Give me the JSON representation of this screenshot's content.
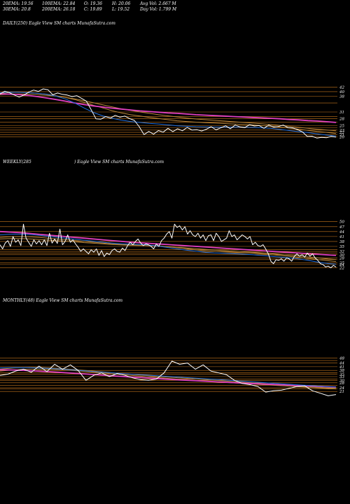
{
  "header": {
    "row1": [
      "20EMA: 19.56",
      "100EMA: 22.84",
      "O: 19.36",
      "H: 20.06",
      "Avg Vol: 2.667 M"
    ],
    "row2": [
      "30EMA: 20.8",
      "200EMA: 26.18",
      "C: 19.89",
      "L: 19.52",
      "Day Vol: 1.799 M"
    ]
  },
  "labels": {
    "daily": "DAILY(250) Eagle  View  SM charts MunafaSutra.com",
    "weekly_left": "WEEKLY(285",
    "weekly_right": ") Eagle  View  SM charts MunafaSutra.com",
    "monthly": "MONTHLY(48) Eagle  View  SM charts MunafaSutra.com"
  },
  "colors": {
    "price": "#ffffff",
    "ema_blue": "#1f6fe0",
    "ema_pink": "#e040c0",
    "ema_brown": "#b8863b",
    "hlines": "#c8781e",
    "background": "#000000"
  },
  "chart_data": [
    {
      "type": "line",
      "name": "daily",
      "ylim": [
        18,
        44
      ],
      "yticks": [
        42,
        40,
        38,
        31,
        28,
        25,
        23,
        22,
        21,
        20
      ],
      "hlines": [
        42,
        40,
        38,
        35,
        31,
        29,
        28,
        26.5,
        25,
        24,
        23,
        22,
        21,
        20
      ],
      "series": [
        {
          "role": "price",
          "values": [
            39,
            40.2,
            39.5,
            38.5,
            37.6,
            38.5,
            39.8,
            40.7,
            40.1,
            41.2,
            40.8,
            38.6,
            39.4,
            38.8,
            38.5,
            37.8,
            38.2,
            37,
            35.8,
            32,
            28,
            27.8,
            29,
            28.3,
            29.5,
            28.7,
            29.2,
            28.1,
            27.3,
            24.5,
            21,
            22.4,
            21.2,
            22.8,
            22.1,
            23.8,
            22.3,
            23.6,
            22.7,
            24.2,
            23,
            23.2,
            22.6,
            23.4,
            24.5,
            23.1,
            24,
            24.9,
            23.6,
            25.2,
            24.4,
            24.1,
            25.4,
            24.8,
            25,
            23.8,
            25.2,
            24.3,
            24.6,
            25.2,
            24.1,
            24,
            23.2,
            22.2,
            20.2,
            20.3,
            19.5,
            19.8,
            19.6,
            20.2,
            19.9
          ]
        },
        {
          "role": "ema_blue",
          "values": [
            39.5,
            39.8,
            39.7,
            39.5,
            39.3,
            38.8,
            38,
            36.8,
            35,
            32.8,
            30.8,
            29.3,
            28.2,
            27.4,
            26.8,
            26.4,
            26,
            25.7,
            25.3,
            24.9,
            24.7,
            24.5,
            24.4,
            24.3,
            24.3,
            24.3,
            24.3,
            24.2,
            24,
            23.8,
            23.3,
            22.8,
            22.3,
            21.9,
            21.3,
            20.8,
            20.4
          ]
        },
        {
          "role": "ema_brown",
          "values": [
            39.2,
            39.6,
            39.8,
            39.6,
            39.3,
            38.9,
            38.2,
            37.4,
            36.5,
            35.3,
            34,
            32.8,
            31.6,
            30.6,
            29.8,
            29.2,
            28.6,
            28.1,
            27.6,
            27.1,
            26.8,
            26.5,
            26.3,
            26.1,
            25.9,
            25.7,
            25.5,
            25.3,
            25,
            24.7,
            24.3,
            23.9,
            23.4,
            22.9,
            22.4,
            22,
            21.5
          ]
        },
        {
          "role": "ema_brown",
          "values": [
            38.6,
            38.9,
            39,
            38.9,
            38.7,
            38.4,
            38,
            37.5,
            36.8,
            36,
            35.1,
            34.2,
            33.3,
            32.4,
            31.7,
            31,
            30.4,
            29.8,
            29.3,
            28.8,
            28.3,
            27.9,
            27.6,
            27.3,
            27,
            26.7,
            26.4,
            26.1,
            25.8,
            25.5,
            25.1,
            24.7,
            24.2,
            23.8,
            23.4,
            23,
            22.7
          ]
        },
        {
          "role": "ema_pink",
          "values": [
            39,
            38.9,
            38.7,
            38.3,
            37.8,
            37.2,
            36.5,
            35.8,
            35,
            34.3,
            33.7,
            33.2,
            32.7,
            32.3,
            31.9,
            31.5,
            31.2,
            30.9,
            30.6,
            30.4,
            30.1,
            29.8,
            29.6,
            29.4,
            29.2,
            29,
            28.8,
            28.6,
            28.4,
            28.2,
            28,
            27.7,
            27.5,
            27.2,
            27,
            26.7,
            26.4
          ]
        }
      ]
    },
    {
      "type": "line",
      "name": "weekly",
      "ylim": [
        18,
        52
      ],
      "yticks": [
        50,
        47,
        44,
        41,
        38,
        35,
        32,
        30,
        28,
        25,
        24,
        22
      ],
      "hlines": [
        50,
        47,
        44,
        41,
        38,
        35,
        33,
        32,
        31,
        30,
        28,
        27,
        25,
        24,
        22
      ],
      "series": [
        {
          "role": "price",
          "values": [
            36,
            33.5,
            37,
            38.5,
            35,
            41,
            37.5,
            39,
            35.5,
            48.5,
            40,
            37.5,
            35,
            39,
            36.5,
            38.5,
            36,
            39,
            35.5,
            43,
            37,
            39.5,
            36.8,
            45.5,
            36,
            38,
            42,
            37.5,
            39,
            36.5,
            34.5,
            32,
            33.5,
            32,
            30.5,
            33,
            31.5,
            33.5,
            29.5,
            32.5,
            28.8,
            31,
            30,
            32.5,
            33.5,
            32,
            31.5,
            34,
            32.5,
            35.5,
            37.5,
            36,
            38,
            39.5,
            37,
            35.5,
            36.5,
            36,
            35,
            33.5,
            36.5,
            35,
            38.5,
            40,
            42.5,
            44,
            40,
            48.5,
            46.5,
            47.5,
            45,
            47,
            42.5,
            44.5,
            42,
            41,
            43,
            40,
            42,
            38.5,
            41.5,
            42,
            38.5,
            43,
            41,
            38,
            39,
            40,
            44.5,
            41,
            42,
            39,
            40.5,
            42,
            41,
            39.5,
            41,
            36,
            37.5,
            35.5,
            35,
            36,
            33.5,
            30.5,
            26,
            24.5,
            27,
            26.5,
            27.5,
            26,
            28,
            27.5,
            26,
            29,
            30.5,
            29,
            30,
            28.5,
            31,
            29,
            30.5,
            28,
            26.5,
            24.5,
            24,
            22.5,
            23,
            22,
            23.5,
            22.5
          ]
        },
        {
          "role": "ema_blue",
          "values": [
            42,
            42.3,
            42.5,
            42.4,
            42.2,
            41.8,
            41.3,
            40.8,
            40.3,
            39.8,
            39.3,
            38.8,
            38.3,
            37.8,
            37.3,
            36.9,
            36.6,
            36.4,
            36.2,
            36,
            35.6,
            35,
            34.3,
            33.6,
            33,
            32.4,
            31.9,
            31.4,
            31.1,
            30.9,
            30.7,
            30.5,
            30.3,
            30,
            29.6,
            29.2,
            28.8,
            28.4,
            28,
            27.5,
            26.8,
            26,
            25.2,
            24.6,
            24.2
          ]
        },
        {
          "role": "ema_brown",
          "values": [
            40.5,
            40.8,
            41,
            41,
            40.8,
            40.5,
            40.1,
            39.7,
            39.3,
            38.9,
            38.5,
            38,
            37.6,
            37.2,
            36.8,
            36.4,
            36.1,
            35.9,
            35.8,
            35.7,
            35.5,
            35.2,
            34.8,
            34.3,
            33.8,
            33.3,
            32.8,
            32.4,
            32.1,
            31.8,
            31.6,
            31.4,
            31.2,
            30.9,
            30.6,
            30.2,
            29.8,
            29.4,
            28.9,
            28.4,
            27.9,
            27.4,
            26.8,
            26.3,
            25.8
          ]
        },
        {
          "role": "ema_brown",
          "values": [
            39.5,
            39.7,
            39.8,
            39.7,
            39.5,
            39.2,
            38.9,
            38.6,
            38.3,
            38,
            37.7,
            37.3,
            37,
            36.7,
            36.4,
            36.1,
            35.9,
            35.7,
            35.6,
            35.5,
            35.3,
            35.1,
            34.8,
            34.5,
            34.2,
            33.8,
            33.5,
            33.2,
            32.9,
            32.6,
            32.3,
            32.1,
            31.8,
            31.5,
            31.2,
            30.8,
            30.4,
            30,
            29.6,
            29.2,
            28.8,
            28.3,
            27.9,
            27.4,
            27
          ]
        },
        {
          "role": "ema_pink",
          "values": [
            44,
            43.8,
            43.5,
            43.2,
            42.8,
            42.4,
            42,
            41.6,
            41.2,
            40.8,
            40.4,
            40,
            39.6,
            39.2,
            38.8,
            38.4,
            38,
            37.6,
            37.3,
            37,
            36.7,
            36.4,
            36.1,
            35.8,
            35.5,
            35.2,
            34.9,
            34.6,
            34.3,
            34,
            33.7,
            33.4,
            33.1,
            32.8,
            32.5,
            32.2,
            31.9,
            31.6,
            31.3,
            31,
            30.7,
            30.4,
            30.1,
            29.8,
            29.5
          ]
        }
      ]
    },
    {
      "type": "line",
      "name": "monthly",
      "ylim": [
        16,
        50
      ],
      "yticks": [
        48,
        44,
        41,
        38,
        35,
        33,
        30,
        28,
        24,
        21
      ],
      "hlines": [
        48,
        46,
        44,
        41,
        38,
        36,
        35,
        33,
        31,
        30,
        28,
        26,
        24,
        23,
        21
      ],
      "series": [
        {
          "role": "price",
          "values": [
            34,
            35,
            37.5,
            39,
            36.5,
            41.5,
            37,
            43,
            39,
            42.5,
            38,
            30,
            34,
            36,
            33,
            35.5,
            34,
            32,
            30.5,
            30,
            31,
            36,
            45.5,
            43,
            44,
            39,
            42.5,
            37.5,
            36,
            34.5,
            30,
            27.5,
            26.5,
            25,
            20.5,
            21.5,
            22,
            23.5,
            25,
            25.5,
            21.5,
            19.5,
            17.5,
            18.5
          ]
        },
        {
          "role": "ema_blue",
          "values": [
            40,
            40.3,
            40.2,
            39.8,
            39.2,
            38.4,
            37.5,
            36.6,
            35.8,
            35,
            34.3,
            33.5,
            32.8,
            32,
            31.3,
            30.6,
            29.8,
            29,
            28.2,
            27.4,
            26.6,
            25.9,
            25.2,
            24.5
          ]
        },
        {
          "role": "ema_brown",
          "values": [
            39,
            40,
            40.4,
            40.2,
            39.6,
            38.8,
            37.8,
            36.8,
            35.8,
            34.8,
            33.9,
            33,
            32.2,
            31.4,
            30.6,
            29.8,
            29,
            28.2,
            27.4,
            26.6,
            25.8,
            25,
            24.2,
            23.4
          ]
        },
        {
          "role": "ema_brown",
          "values": [
            37.5,
            38.5,
            39,
            39,
            38.6,
            37.9,
            37,
            36,
            35,
            34,
            33,
            32,
            31.1,
            30.2,
            29.4,
            28.6,
            27.9,
            27.2,
            26.5,
            25.8,
            25.1,
            24.4,
            23.7,
            23
          ]
        },
        {
          "role": "ema_pink",
          "values": [
            38.5,
            38.3,
            37.8,
            37.2,
            36.5,
            35.8,
            35,
            34.2,
            33.4,
            32.6,
            31.9,
            31.2,
            30.5,
            29.9,
            29.3,
            28.7,
            28.1,
            27.5,
            27,
            26.5,
            26,
            25.5,
            25,
            24.5
          ]
        }
      ]
    }
  ]
}
